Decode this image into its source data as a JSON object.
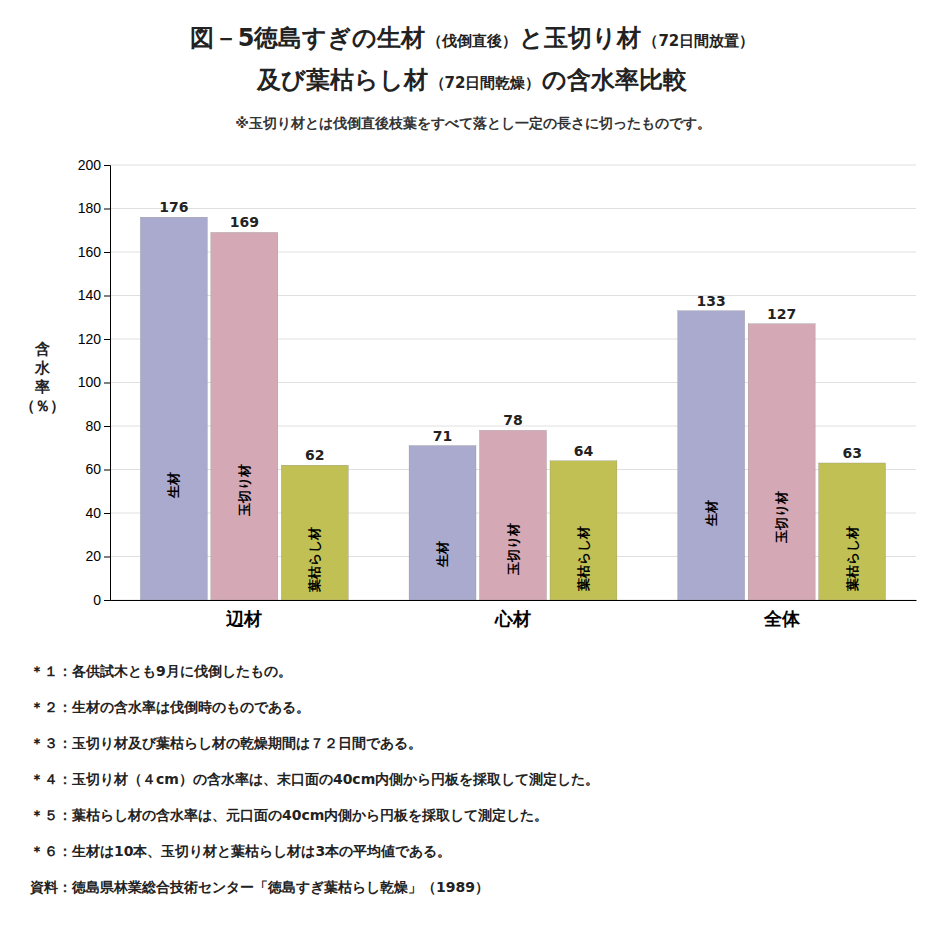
{
  "chart_data": {
    "type": "bar",
    "title": [
      [
        "図－5徳島すぎの生材",
        "（伐倒直後）",
        "と玉切り材",
        "（72日間放置）"
      ],
      [
        "及び葉枯らし材",
        "（72日間乾燥）",
        "の含水率比較"
      ]
    ],
    "subtitle": "※玉切り材とは伐倒直後枝葉をすべて落とし一定の長さに切ったものです。",
    "y_label": "含\n水\n率\n（％）",
    "categories": [
      "辺材",
      "心材",
      "全体"
    ],
    "series": [
      {
        "name": "生材",
        "color": "#aaaace",
        "values": [
          176,
          71,
          133
        ]
      },
      {
        "name": "玉切り材",
        "color": "#d4a8b4",
        "values": [
          169,
          78,
          127
        ]
      },
      {
        "name": "葉枯らし材",
        "color": "#c0c055",
        "values": [
          62,
          64,
          63
        ]
      }
    ],
    "ylim": [
      0,
      200
    ],
    "yticks": [
      0,
      20,
      40,
      60,
      80,
      100,
      120,
      140,
      160,
      180,
      200
    ],
    "grid": true,
    "data_labels": true,
    "annotations": [
      "＊１：各供試木とも9月に伐倒したもの。",
      "＊２：生材の含水率は伐倒時のものである。",
      "＊３：玉切り材及び葉枯らし材の乾燥期間は７２日間である。",
      "＊４：玉切り材（４cm）の含水率は、末口面の40cm内側から円板を採取して測定した。",
      "＊５：葉枯らし材の含水率は、元口面の40cm内側から円板を採取して測定した。",
      "＊６：生材は10本、玉切り材と葉枯らし材は3本の平均値である。",
      "資料：徳島県林業総合技術センター「徳島すぎ葉枯らし乾燥」（1989）"
    ]
  }
}
